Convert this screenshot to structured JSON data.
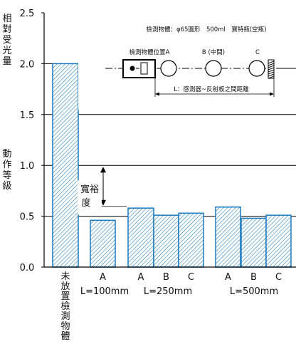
{
  "chart_data": {
    "type": "bar",
    "ylabel_chars": [
      "相",
      "對",
      "受",
      "光",
      "量"
    ],
    "yticks": [
      "2.5",
      "2.0",
      "1.5",
      "1.0",
      "0.5",
      "0.0"
    ],
    "ylim": [
      0,
      2.5
    ],
    "grid": true,
    "bars": [
      {
        "label": "",
        "value": 2.0
      },
      {
        "label": "A",
        "value": 0.46
      },
      {
        "label": "A",
        "value": 0.58
      },
      {
        "label": "B",
        "value": 0.51
      },
      {
        "label": "C",
        "value": 0.53
      },
      {
        "label": "A",
        "value": 0.59
      },
      {
        "label": "B",
        "value": 0.48
      },
      {
        "label": "C",
        "value": 0.51
      }
    ],
    "no_object_label_chars": [
      "未",
      "放",
      "置",
      "檢",
      "測",
      "物",
      "體"
    ],
    "groups": [
      "L=100mm",
      "L=250mm",
      "L=500mm"
    ],
    "threshold": {
      "value": 1.0,
      "label_chars": [
        "動",
        "作",
        "等",
        "級"
      ]
    },
    "margin": {
      "label_line1": "寬裕",
      "label_line2": "度"
    },
    "inset": {
      "title": "檢測物體：φ65圓形　500ml　寶特瓶(空瓶)",
      "position_label": "檢測物體位置A",
      "b_label": "B (中間)",
      "c_label": "C",
      "distance_label": "L：感測器~反射板之間距離"
    },
    "colors": {
      "bar_stroke": "#1a7abf",
      "bar_hatch": "#1a7abf",
      "axis": "#000000"
    }
  }
}
